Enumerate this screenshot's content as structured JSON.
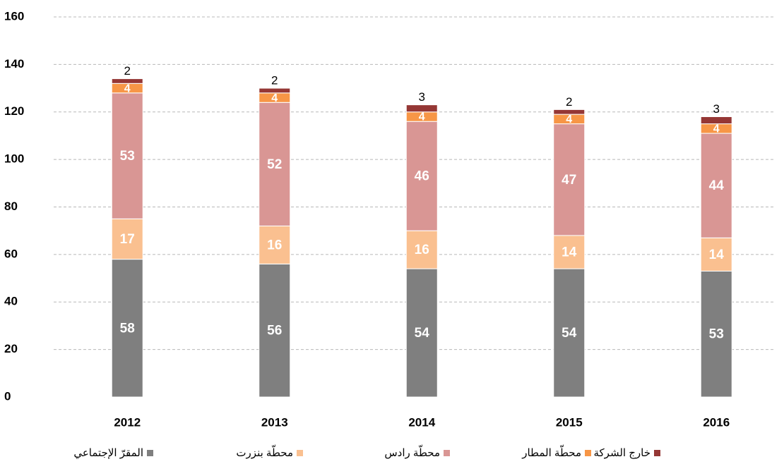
{
  "chart_data": {
    "type": "stacked_bar",
    "categories": [
      "2012",
      "2013",
      "2014",
      "2015",
      "2016"
    ],
    "series": [
      {
        "name": "المقرّ الإجتماعي",
        "color": "#7f7f7f",
        "values": [
          58,
          56,
          54,
          54,
          53
        ]
      },
      {
        "name": "محطّة بنزرت",
        "color": "#fac090",
        "values": [
          17,
          16,
          16,
          14,
          14
        ]
      },
      {
        "name": "محطّة رادس",
        "color": "#d99694",
        "values": [
          53,
          52,
          46,
          47,
          44
        ]
      },
      {
        "name": "محطّة المطار",
        "color": "#f79646",
        "values": [
          4,
          4,
          4,
          4,
          4
        ]
      },
      {
        "name": "خارج الشركة",
        "color": "#953735",
        "values": [
          2,
          2,
          3,
          2,
          3
        ]
      }
    ],
    "ylim": [
      0,
      160
    ],
    "yticks": [
      0,
      20,
      40,
      60,
      80,
      100,
      120,
      140,
      160
    ],
    "grid": true
  }
}
